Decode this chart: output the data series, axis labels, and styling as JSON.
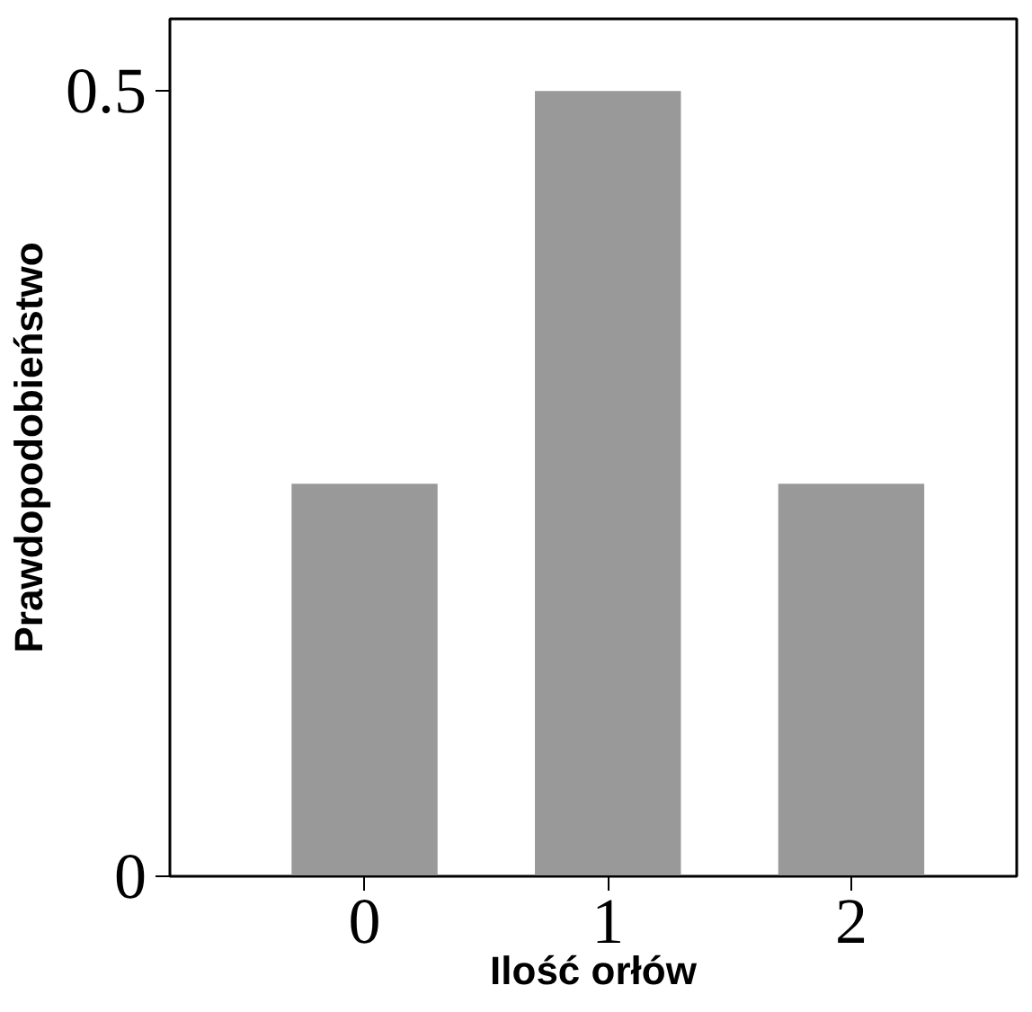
{
  "chart_data": {
    "type": "bar",
    "xlabel": "Ilość orłów",
    "ylabel": "Prawdopodobieństwo",
    "x": [
      0,
      1,
      2
    ],
    "values": [
      0.25,
      0.5,
      0.25
    ],
    "color": "#999999",
    "xlim": [
      -0.8,
      2.68
    ],
    "xticks": [
      0,
      1,
      2
    ],
    "ylim": [
      0,
      0.546
    ],
    "yticks": [
      0,
      0.5
    ],
    "grid": false
  }
}
